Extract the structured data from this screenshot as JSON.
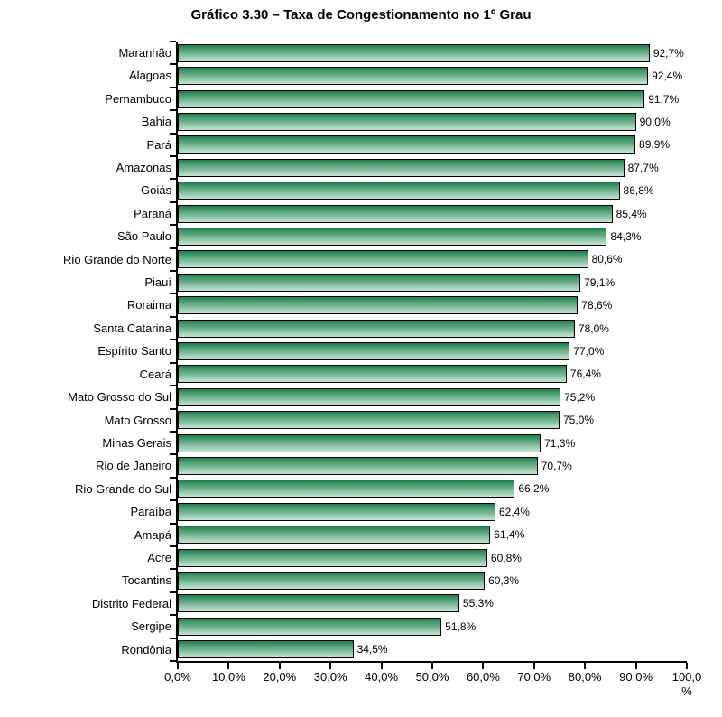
{
  "chart_data": {
    "type": "bar",
    "orientation": "horizontal",
    "title": "Gráfico 3.30 – Taxa de Congestionamento no 1º Grau",
    "categories": [
      "Maranhão",
      "Alagoas",
      "Pernambuco",
      "Bahia",
      "Pará",
      "Amazonas",
      "Goiás",
      "Paraná",
      "São Paulo",
      "Rio Grande do Norte",
      "Piauí",
      "Roraima",
      "Santa Catarina",
      "Espírito Santo",
      "Ceará",
      "Mato Grosso do Sul",
      "Mato Grosso",
      "Minas Gerais",
      "Rio de Janeiro",
      "Rio Grande do Sul",
      "Paraíba",
      "Amapá",
      "Acre",
      "Tocantins",
      "Distrito Federal",
      "Sergipe",
      "Rondônia"
    ],
    "values": [
      92.7,
      92.4,
      91.7,
      90.0,
      89.9,
      87.7,
      86.8,
      85.4,
      84.3,
      80.6,
      79.1,
      78.6,
      78.0,
      77.0,
      76.4,
      75.2,
      75.0,
      71.3,
      70.7,
      66.2,
      62.4,
      61.4,
      60.8,
      60.3,
      55.3,
      51.8,
      34.5
    ],
    "value_labels": [
      "92,7%",
      "92,4%",
      "91,7%",
      "90,0%",
      "89,9%",
      "87,7%",
      "86,8%",
      "85,4%",
      "84,3%",
      "80,6%",
      "79,1%",
      "78,6%",
      "78,0%",
      "77,0%",
      "76,4%",
      "75,2%",
      "75,0%",
      "71,3%",
      "70,7%",
      "66,2%",
      "62,4%",
      "61,4%",
      "60,8%",
      "60,3%",
      "55,3%",
      "51,8%",
      "34,5%"
    ],
    "x_tick_labels": [
      "0,0%",
      "10,0%",
      "20,0%",
      "30,0%",
      "40,0%",
      "50,0%",
      "60,0%",
      "70,0%",
      "80,0%",
      "90,0%",
      "100,0\n%"
    ],
    "xlim": [
      0,
      100
    ],
    "grid": false,
    "legend": null,
    "colors": {
      "bar_gradient_top": "#1F7C49",
      "bar_gradient_mid": "#6FB28D",
      "bar_gradient_bottom": "#C2E2D0",
      "bar_border": "#000000",
      "axis": "#000000",
      "text": "#000000",
      "background": "#FFFFFF"
    }
  }
}
